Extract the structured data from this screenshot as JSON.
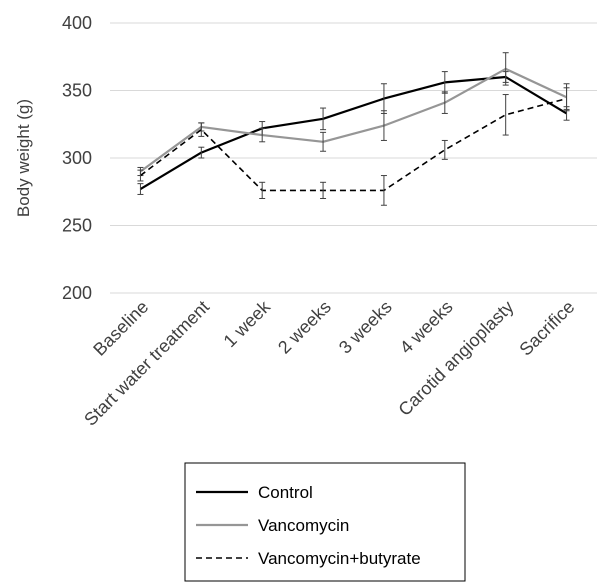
{
  "chart_data": {
    "type": "line",
    "ylabel": "Body weight (g)",
    "ylim": [
      200,
      400
    ],
    "yticks": [
      200,
      250,
      300,
      350,
      400
    ],
    "grid": "horizontal",
    "legend_position": "bottom",
    "categories": [
      "Baseline",
      "Start water treatment",
      "1 week",
      "2 weeks",
      "3 weeks",
      "4 weeks",
      "Carotid angioplasty",
      "Sacrifice"
    ],
    "series": [
      {
        "name": "Control",
        "color": "#000000",
        "style": "solid",
        "values": [
          277,
          304,
          322,
          329,
          344,
          356,
          360,
          333
        ],
        "errors": [
          4,
          4,
          5,
          8,
          11,
          8,
          4,
          5
        ]
      },
      {
        "name": "Vancomycin",
        "color": "#969696",
        "style": "solid",
        "values": [
          290,
          323,
          317,
          312,
          324,
          341,
          366,
          345
        ],
        "errors": [
          3,
          3,
          5,
          7,
          11,
          8,
          12,
          10
        ]
      },
      {
        "name": "Vancomycin+butyrate",
        "color": "#000000",
        "style": "dashed",
        "values": [
          287,
          321,
          276,
          276,
          276,
          306,
          332,
          344
        ],
        "errors": [
          4,
          5,
          6,
          6,
          11,
          7,
          15,
          8
        ]
      }
    ]
  }
}
